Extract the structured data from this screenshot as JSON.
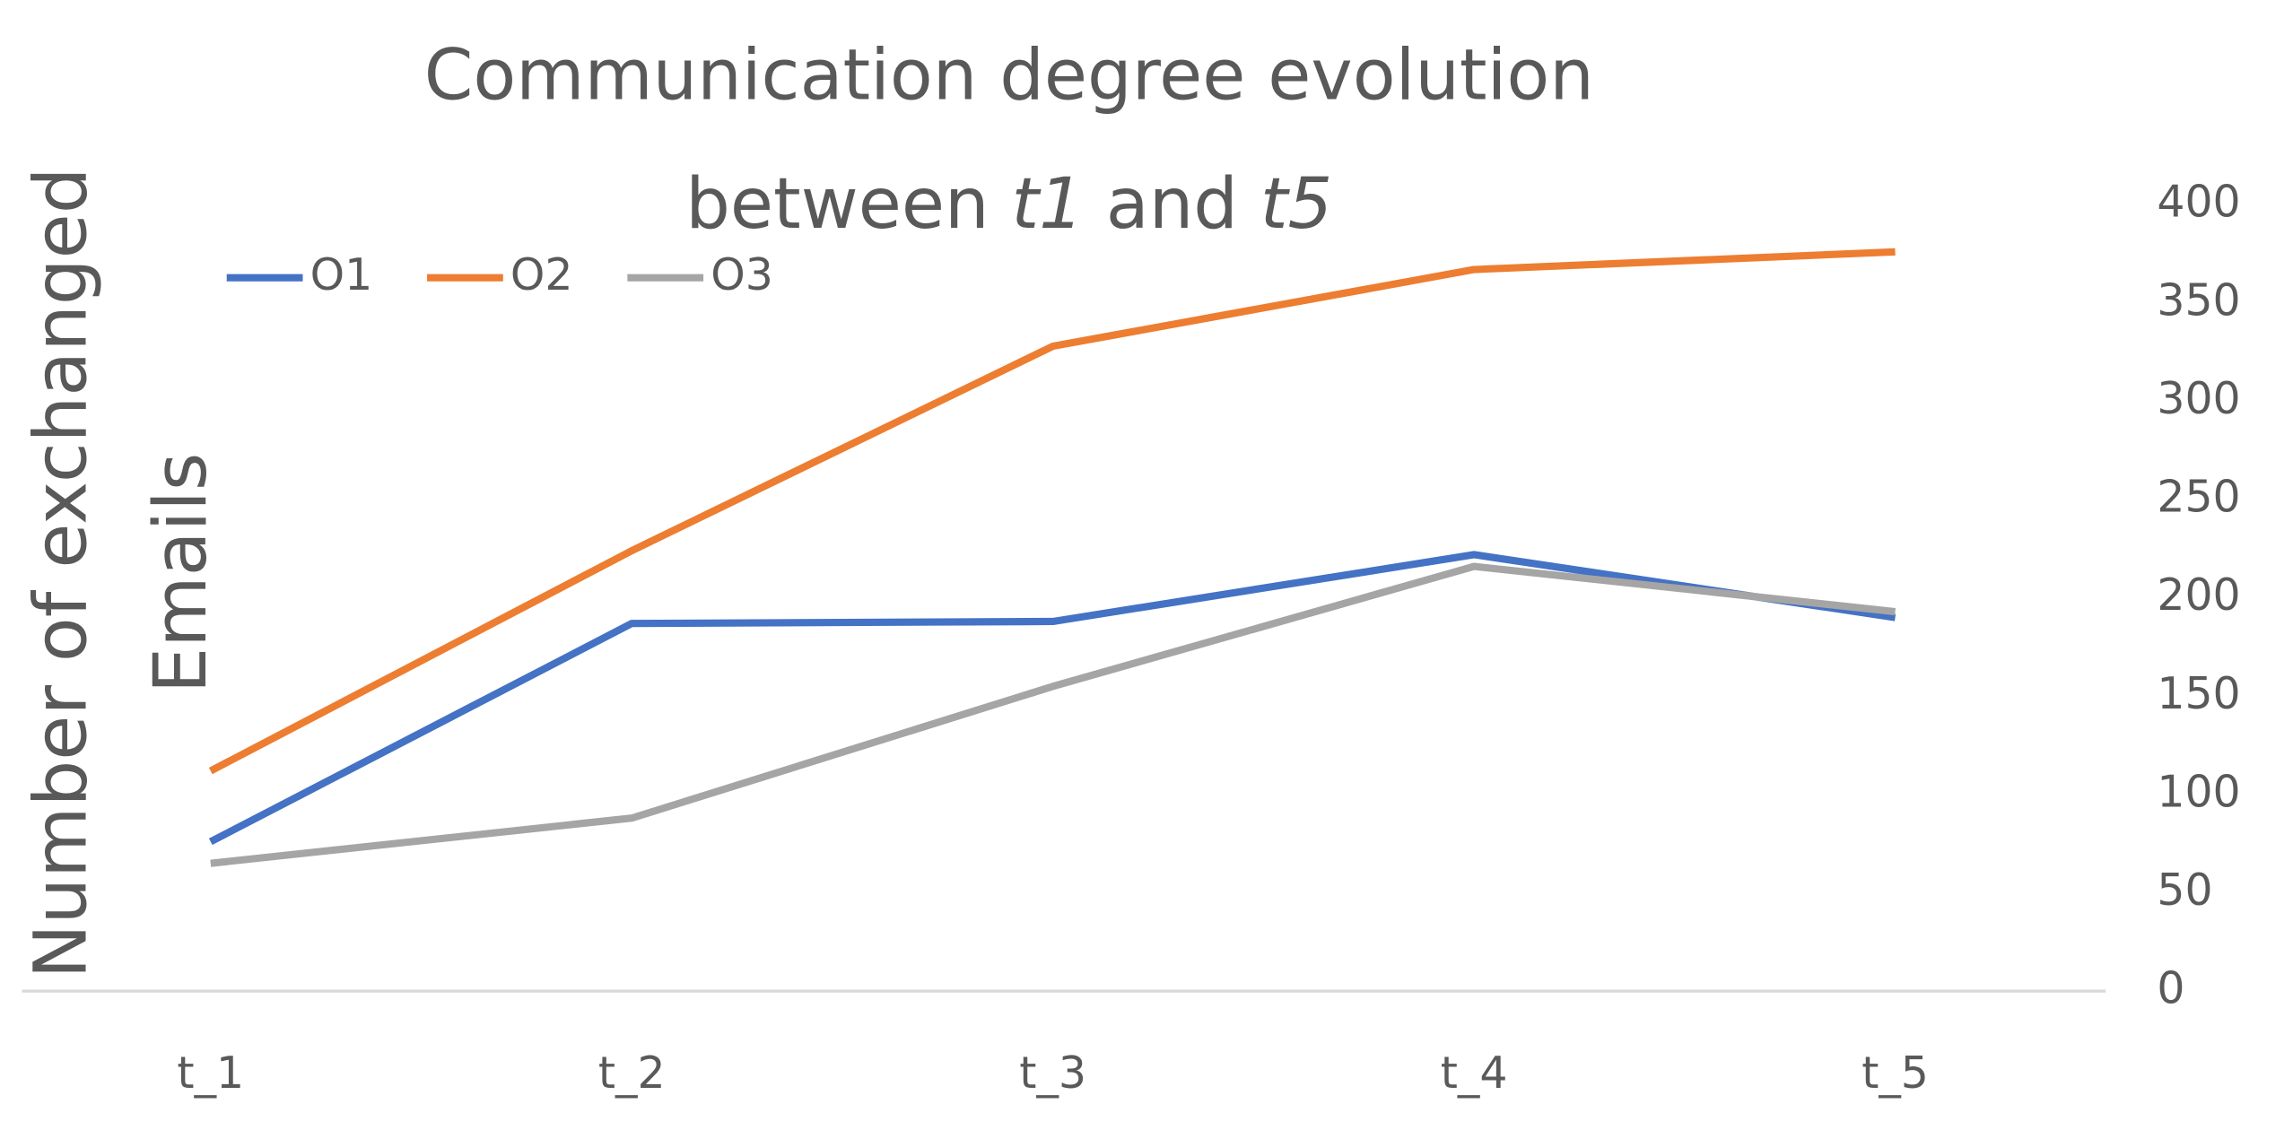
{
  "chart_data": {
    "type": "line",
    "title": "Communication degree evolution between t1 and t5",
    "y_axis_label": "Number of exchanged Emails",
    "categories": [
      "t_1",
      "t_2",
      "t_3",
      "t_4",
      "t_5"
    ],
    "series": [
      {
        "name": "O1",
        "color": "#4472c4",
        "values": [
          76,
          187,
          188,
          222,
          190
        ]
      },
      {
        "name": "O2",
        "color": "#ed7d31",
        "values": [
          112,
          224,
          328,
          367,
          376
        ]
      },
      {
        "name": "O3",
        "color": "#a5a5a5",
        "values": [
          65,
          88,
          155,
          216,
          193
        ]
      }
    ],
    "ylim": [
      0,
      400
    ],
    "yticks": [
      0,
      50,
      100,
      150,
      200,
      250,
      300,
      350,
      400
    ],
    "y_axis_side": "right",
    "grid": false,
    "legend": "top-left"
  }
}
